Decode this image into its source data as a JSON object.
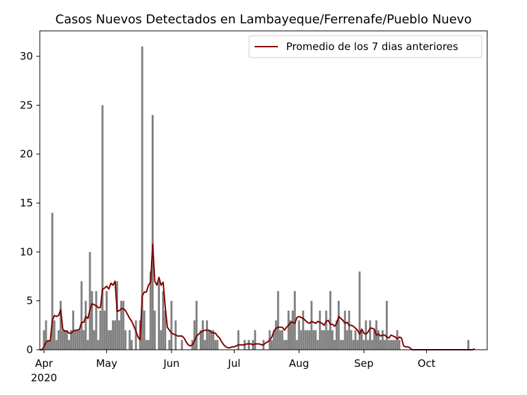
{
  "chart_data": {
    "type": "bar",
    "title": "Casos Nuevos Detectados en Lambayeque/Ferrenafe/Pueblo Nuevo",
    "xlabel": "",
    "ylabel": "",
    "x_start_date": "2020-03-30",
    "x_end_date": "2020-10-30",
    "ylim": [
      0,
      32.6
    ],
    "y_ticks": [
      0,
      5,
      10,
      15,
      20,
      25,
      30
    ],
    "x_ticks": [
      {
        "date": "2020-04-01",
        "label": "Apr",
        "sublabel": "2020"
      },
      {
        "date": "2020-05-01",
        "label": "May",
        "sublabel": ""
      },
      {
        "date": "2020-06-01",
        "label": "Jun",
        "sublabel": ""
      },
      {
        "date": "2020-07-01",
        "label": "Jul",
        "sublabel": ""
      },
      {
        "date": "2020-08-01",
        "label": "Aug",
        "sublabel": ""
      },
      {
        "date": "2020-09-01",
        "label": "Sep",
        "sublabel": ""
      },
      {
        "date": "2020-10-01",
        "label": "Oct",
        "sublabel": ""
      }
    ],
    "grid": false,
    "legend_position": "top-right",
    "bar_color": "#808080",
    "series": [
      {
        "name": "Casos Nuevos",
        "kind": "bar",
        "color": "#808080",
        "values": [
          0,
          0,
          2,
          3,
          1,
          1,
          14,
          3,
          1,
          2,
          5,
          2,
          2,
          2,
          1,
          2,
          4,
          2,
          2,
          2,
          7,
          2,
          5,
          1,
          10,
          6,
          2,
          6,
          1,
          4,
          25,
          4,
          6,
          2,
          2,
          3,
          3,
          7,
          3,
          5,
          5,
          2,
          0,
          2,
          1,
          0,
          3,
          0,
          3,
          31,
          4,
          1,
          1,
          8,
          24,
          4,
          0,
          7,
          2,
          6,
          4,
          0,
          1,
          5,
          0,
          3,
          0,
          0,
          1,
          0,
          0,
          0,
          0,
          1,
          3,
          5,
          0,
          2,
          3,
          1,
          3,
          2,
          2,
          2,
          1,
          1,
          0,
          0,
          0,
          0,
          0,
          0,
          0,
          0,
          0,
          2,
          0,
          0,
          1,
          0,
          1,
          0,
          1,
          2,
          0,
          0,
          0,
          1,
          0,
          0,
          2,
          1,
          2,
          3,
          6,
          2,
          2,
          1,
          1,
          4,
          3,
          4,
          6,
          1,
          3,
          2,
          4,
          2,
          2,
          2,
          5,
          2,
          2,
          1,
          4,
          2,
          2,
          4,
          2,
          6,
          2,
          1,
          3,
          5,
          1,
          1,
          4,
          2,
          4,
          2,
          1,
          2,
          1,
          8,
          2,
          1,
          3,
          1,
          3,
          1,
          2,
          3,
          2,
          1,
          2,
          1,
          5,
          1,
          1,
          1,
          1,
          2,
          1,
          0,
          0,
          0,
          0,
          0,
          0,
          0,
          0,
          0,
          0,
          0,
          0,
          0,
          0,
          0,
          0,
          0,
          0,
          0,
          0,
          0,
          0,
          0,
          0,
          0,
          0,
          0,
          0,
          0,
          0,
          0,
          0,
          1
        ]
      },
      {
        "name": "Promedio de los 7 dias anteriores",
        "kind": "line",
        "color": "#800000",
        "values": [
          0,
          0,
          0.3,
          0.8,
          0.9,
          0.9,
          3.0,
          3.5,
          3.4,
          3.5,
          4.1,
          2.1,
          1.9,
          1.9,
          1.7,
          1.7,
          1.9,
          2.0,
          2.0,
          2.1,
          2.8,
          2.8,
          3.4,
          3.2,
          4.1,
          4.7,
          4.6,
          4.5,
          4.3,
          4.3,
          6.2,
          6.3,
          6.5,
          6.2,
          6.8,
          6.6,
          7.0,
          3.9,
          4.0,
          4.2,
          4.2,
          4.0,
          3.6,
          3.2,
          2.9,
          2.4,
          1.9,
          1.3,
          1.0,
          5.5,
          5.9,
          5.9,
          6.6,
          6.9,
          10.8,
          7.0,
          6.6,
          7.4,
          6.6,
          6.9,
          4.4,
          2.3,
          2.0,
          1.7,
          1.6,
          1.5,
          1.4,
          1.4,
          1.4,
          1.2,
          0.8,
          0.5,
          0.4,
          0.5,
          0.9,
          1.4,
          1.6,
          1.8,
          1.9,
          2.0,
          2.0,
          2.0,
          1.8,
          1.7,
          1.7,
          1.4,
          1.2,
          0.8,
          0.5,
          0.3,
          0.2,
          0.2,
          0.3,
          0.3,
          0.4,
          0.5,
          0.5,
          0.5,
          0.5,
          0.6,
          0.6,
          0.6,
          0.5,
          0.6,
          0.6,
          0.6,
          0.5,
          0.5,
          0.7,
          0.8,
          1.0,
          1.3,
          1.9,
          2.2,
          2.3,
          2.3,
          2.3,
          2.0,
          2.3,
          2.5,
          2.8,
          2.8,
          2.7,
          3.3,
          3.4,
          3.3,
          3.2,
          3.0,
          2.8,
          2.7,
          2.9,
          2.8,
          2.7,
          2.9,
          2.8,
          2.7,
          2.5,
          2.9,
          3.0,
          2.6,
          2.6,
          2.4,
          2.7,
          3.4,
          3.2,
          3.0,
          2.7,
          2.8,
          2.5,
          2.5,
          2.4,
          2.2,
          2.0,
          1.6,
          2.1,
          1.7,
          1.6,
          1.8,
          2.2,
          2.2,
          2.1,
          1.5,
          1.6,
          1.4,
          1.5,
          1.5,
          1.3,
          1.2,
          1.5,
          1.4,
          1.3,
          1.1,
          1.3,
          1.2,
          0.4,
          0.3,
          0.3,
          0.2,
          0,
          0,
          0,
          0,
          0,
          0,
          0,
          0,
          0,
          0,
          0,
          0,
          0,
          0,
          0,
          0,
          0,
          0,
          0,
          0,
          0,
          0,
          0,
          0,
          0,
          0,
          0,
          0,
          0,
          0,
          0.1
        ]
      }
    ]
  }
}
